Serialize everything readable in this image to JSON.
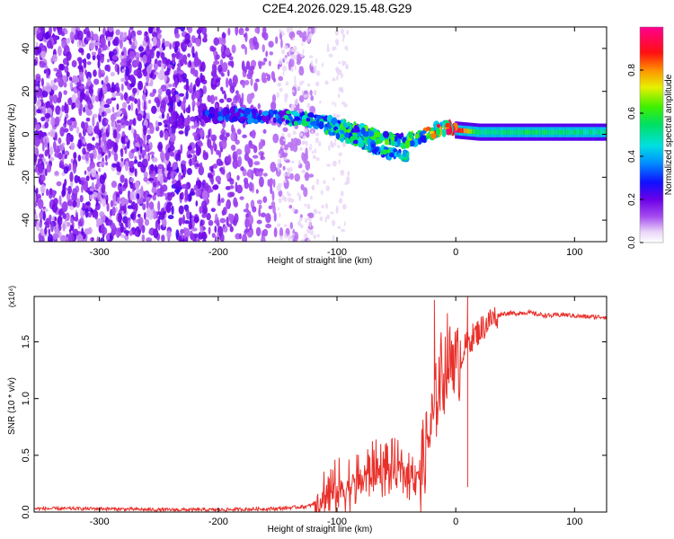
{
  "figure": {
    "title": "C2E4.2026.029.15.48.G29"
  },
  "chart_data": [
    {
      "type": "heatmap",
      "title": "C2E4.2026.029.15.48.G29",
      "xlabel": "Height of straight line (km)",
      "ylabel": "Frequency (Hz)",
      "xlim": [
        -355,
        127
      ],
      "ylim": [
        -50,
        50
      ],
      "xticks": [
        -300,
        -200,
        -100,
        0,
        100
      ],
      "yticks": [
        -40,
        -20,
        0,
        20,
        40
      ],
      "xtick_labels": [
        "-300",
        "-200",
        "-100",
        "0",
        "100"
      ],
      "ytick_labels": [
        "-40",
        "-20",
        "0",
        "20",
        "40"
      ],
      "colorbar": {
        "label": "Normalized spectral amplitude",
        "range": [
          0,
          1
        ],
        "ticks": [
          "0.0",
          "0.2",
          "0.4",
          "0.6",
          "0.8"
        ],
        "tick_values": [
          0,
          0.2,
          0.4,
          0.6,
          0.8
        ],
        "colormap": "rainbow (white-violet-blue-cyan-green-yellow-red-magenta)"
      },
      "noise_region_x": [
        -355,
        -150
      ],
      "noise_density_fade_x": [
        -240,
        -140
      ],
      "track": [
        {
          "x": -210,
          "f": 9,
          "amp": 0.35
        },
        {
          "x": -185,
          "f": 9,
          "amp": 0.35
        },
        {
          "x": -160,
          "f": 8,
          "amp": 0.35
        },
        {
          "x": -145,
          "f": 8,
          "amp": 0.5
        },
        {
          "x": -125,
          "f": 7,
          "amp": 0.55
        },
        {
          "x": -105,
          "f": 5,
          "amp": 0.6
        },
        {
          "x": -85,
          "f": 2,
          "amp": 0.6
        },
        {
          "x": -65,
          "f": -1,
          "amp": 0.6
        },
        {
          "x": -45,
          "f": -3,
          "amp": 0.6
        },
        {
          "x": -35,
          "f": -2,
          "amp": 0.65
        },
        {
          "x": -22,
          "f": 1,
          "amp": 0.85
        },
        {
          "x": -10,
          "f": 3,
          "amp": 0.85
        },
        {
          "x": 0,
          "f": 2,
          "amp": 0.95
        },
        {
          "x": 20,
          "f": 1,
          "amp": 0.45
        },
        {
          "x": 60,
          "f": 1,
          "amp": 0.5
        },
        {
          "x": 127,
          "f": 1,
          "amp": 0.45
        }
      ],
      "track_lower_branch": [
        {
          "x": -110,
          "f": 3
        },
        {
          "x": -80,
          "f": -4
        },
        {
          "x": -55,
          "f": -9
        },
        {
          "x": -40,
          "f": -10
        }
      ]
    },
    {
      "type": "line",
      "xlabel": "Height of straight line (km)",
      "ylabel": "SNR (10 * v/v)",
      "y_multiplier": "(x10⁴)",
      "xlim": [
        -355,
        127
      ],
      "ylim": [
        0,
        1.9
      ],
      "xticks": [
        -300,
        -200,
        -100,
        0,
        100
      ],
      "yticks": [
        0,
        0.5,
        1.0,
        1.5
      ],
      "xtick_labels": [
        "-300",
        "-200",
        "-100",
        "0",
        "100"
      ],
      "ytick_labels": [
        "0.0",
        "0.5",
        "1.0",
        "1.5"
      ],
      "color": "#e8302a",
      "series": [
        {
          "x": [
            -355,
            -300,
            -250,
            -200,
            -150,
            -125,
            -110,
            -100,
            -90,
            -80,
            -70,
            -60,
            -50,
            -40,
            -30,
            -25,
            -22,
            -18,
            -15,
            -12,
            -10,
            -7,
            -5,
            -2,
            0,
            2,
            5,
            8,
            10,
            15,
            20,
            25,
            30,
            35,
            40,
            50,
            60,
            70,
            80,
            90,
            100,
            110,
            127
          ],
          "y": [
            0.03,
            0.03,
            0.02,
            0.02,
            0.03,
            0.05,
            0.1,
            0.15,
            0.2,
            0.25,
            0.3,
            0.35,
            0.32,
            0.3,
            0.35,
            0.55,
            0.7,
            0.85,
            1.1,
            1.25,
            1.2,
            1.4,
            1.3,
            1.45,
            1.25,
            1.3,
            1.4,
            1.45,
            1.5,
            1.55,
            1.6,
            1.65,
            1.7,
            1.73,
            1.75,
            1.75,
            1.76,
            1.74,
            1.73,
            1.74,
            1.73,
            1.72,
            1.72
          ]
        }
      ],
      "annotations": [
        {
          "x": -18,
          "y": 1.87,
          "label": "spike"
        },
        {
          "x": 10,
          "y": 1.9,
          "label": "spike"
        },
        {
          "x": 10,
          "y": 0.22,
          "label": "dip"
        }
      ]
    }
  ]
}
